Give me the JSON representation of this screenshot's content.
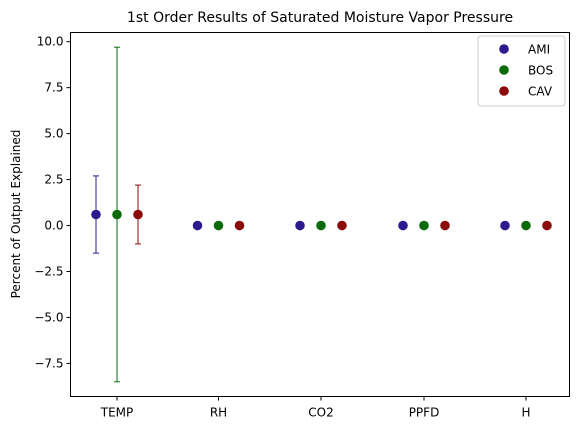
{
  "chart_data": {
    "type": "scatter",
    "title": "1st Order Results of Saturated Moisture Vapor Pressure",
    "xlabel": "",
    "ylabel": "Percent of Output Explained",
    "categories": [
      "TEMP",
      "RH",
      "CO2",
      "PPFD",
      "H"
    ],
    "ylim": [
      -9.3,
      10.5
    ],
    "yticks": [
      10.0,
      7.5,
      5.0,
      2.5,
      0.0,
      -2.5,
      -5.0,
      -7.5
    ],
    "ytick_labels": [
      "10.0",
      "7.5",
      "5.0",
      "2.5",
      "0.0",
      "−2.5",
      "−5.0",
      "−7.5"
    ],
    "grid": false,
    "legend_position": "top-right",
    "series": [
      {
        "name": "AMI",
        "color": "#2e1a8e",
        "values": [
          0.6,
          0.0,
          0.0,
          0.0,
          0.0
        ],
        "err_low": [
          -1.5,
          null,
          null,
          null,
          null
        ],
        "err_high": [
          2.7,
          null,
          null,
          null,
          null
        ]
      },
      {
        "name": "BOS",
        "color": "#0b6b0b",
        "values": [
          0.6,
          0.0,
          0.0,
          0.0,
          0.0
        ],
        "err_low": [
          -8.5,
          null,
          null,
          null,
          null
        ],
        "err_high": [
          9.7,
          null,
          null,
          null,
          null
        ]
      },
      {
        "name": "CAV",
        "color": "#8b0a0a",
        "values": [
          0.6,
          0.0,
          0.0,
          0.0,
          0.0
        ],
        "err_low": [
          -1.0,
          null,
          null,
          null,
          null
        ],
        "err_high": [
          2.2,
          null,
          null,
          null,
          null
        ]
      }
    ]
  }
}
